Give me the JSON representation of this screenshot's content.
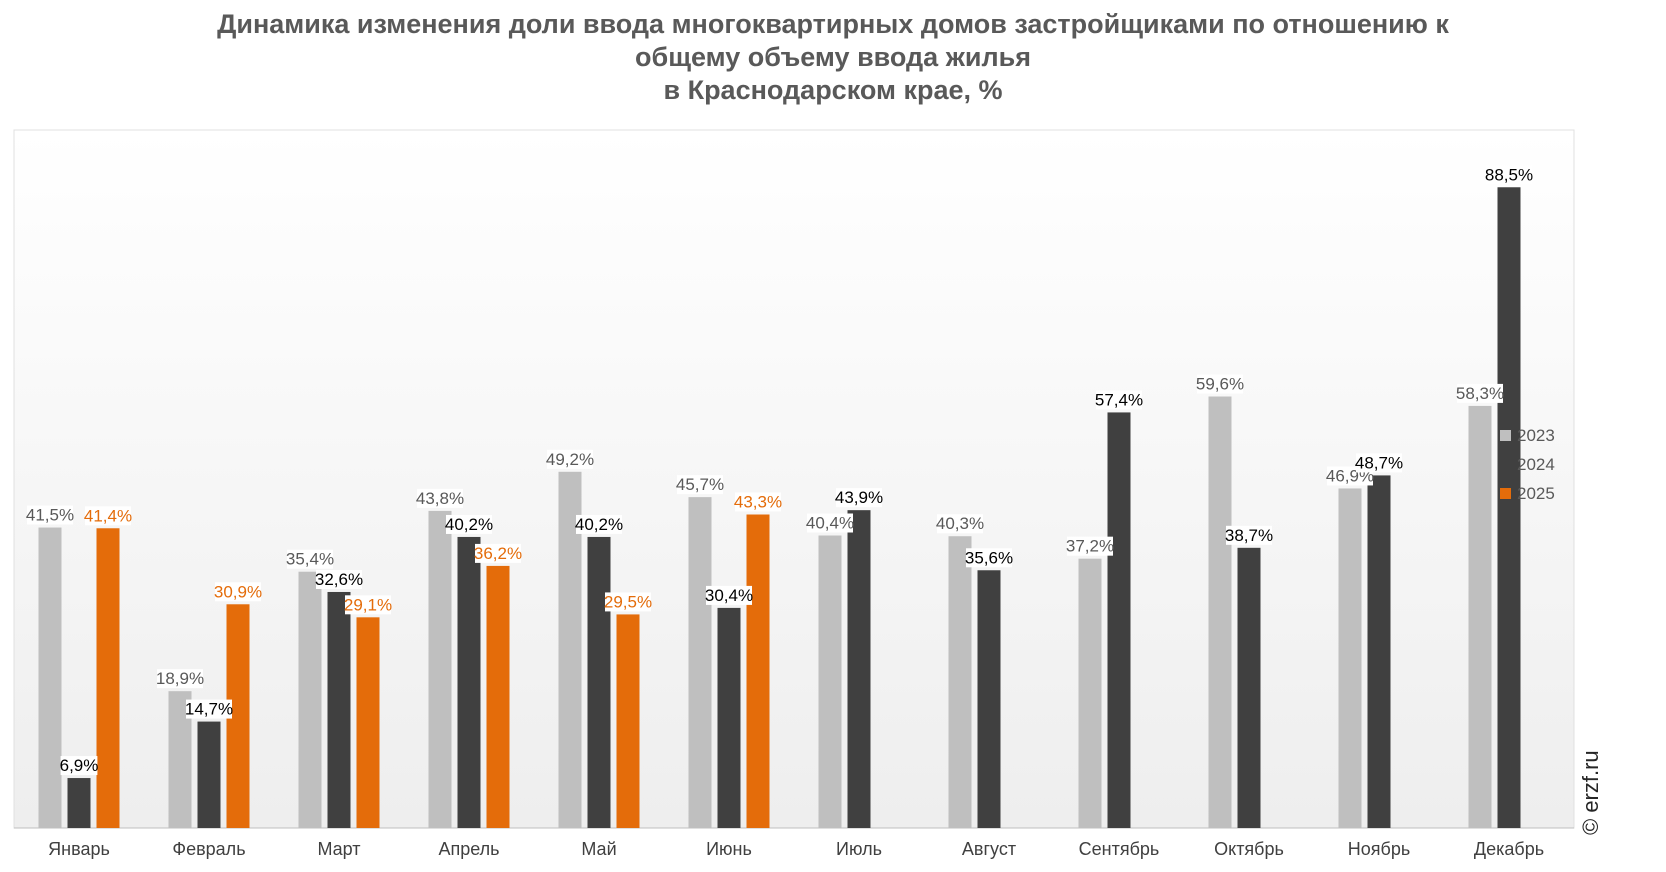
{
  "title_lines": [
    "Динамика изменения доли ввода многоквартирных домов застройщиками по отношению к",
    "общему объему ввода жилья",
    "в Краснодарском крае, %"
  ],
  "watermark": "© erzf.ru",
  "colors": {
    "2023": "#bfbfbf",
    "2024": "#404040",
    "2025": "#e46c0a"
  },
  "chart_data": {
    "type": "bar",
    "title": "Динамика изменения доли ввода многоквартирных домов застройщиками по отношению к общему объему ввода жилья в Краснодарском крае, %",
    "categories": [
      "Январь",
      "Февраль",
      "Март",
      "Апрель",
      "Май",
      "Июнь",
      "Июль",
      "Август",
      "Сентябрь",
      "Октябрь",
      "Ноябрь",
      "Декабрь"
    ],
    "series": [
      {
        "name": "2023",
        "values": [
          41.5,
          18.9,
          35.4,
          43.8,
          49.2,
          45.7,
          40.4,
          40.3,
          37.2,
          59.6,
          46.9,
          58.3
        ],
        "labels": [
          "41,5%",
          "18,9%",
          "35,4%",
          "43,8%",
          "49,2%",
          "45,7%",
          "40,4%",
          "40,3%",
          "37,2%",
          "59,6%",
          "46,9%",
          "58,3%"
        ]
      },
      {
        "name": "2024",
        "values": [
          6.9,
          14.7,
          32.6,
          40.2,
          40.2,
          30.4,
          43.9,
          35.6,
          57.4,
          38.7,
          48.7,
          88.5
        ],
        "labels": [
          "6,9%",
          "14,7%",
          "32,6%",
          "40,2%",
          "40,2%",
          "30,4%",
          "43,9%",
          "35,6%",
          "57,4%",
          "38,7%",
          "48,7%",
          "88,5%"
        ]
      },
      {
        "name": "2025",
        "values": [
          41.4,
          30.9,
          29.1,
          36.2,
          29.5,
          43.3,
          null,
          null,
          null,
          null,
          null,
          null
        ],
        "labels": [
          "41,4%",
          "30,9%",
          "29,1%",
          "36,2%",
          "29,5%",
          "43,3%",
          "",
          "",
          "",
          "",
          "",
          ""
        ]
      }
    ],
    "ylim": [
      0,
      100
    ],
    "grid": false,
    "legend": "right"
  }
}
